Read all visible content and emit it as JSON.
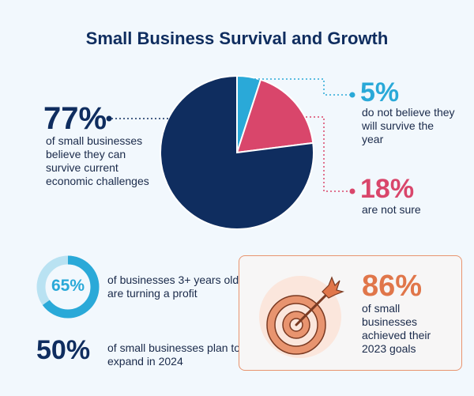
{
  "title": "Small Business Survival and Growth",
  "colors": {
    "navy": "#0f2d5f",
    "blue": "#2aa9d8",
    "pink": "#d9466b",
    "orange": "#e0764a",
    "background": "#f2f8fd"
  },
  "chart_data": {
    "type": "pie",
    "slices": [
      {
        "label": "do not believe they will survive the year",
        "value": 5,
        "display": "5%",
        "color": "#2aa9d8"
      },
      {
        "label": "are not sure",
        "value": 18,
        "display": "18%",
        "color": "#d9466b"
      },
      {
        "label": "of small businesses believe they can survive current economic challenges",
        "value": 77,
        "display": "77%",
        "color": "#0f2d5f"
      }
    ]
  },
  "stats": {
    "profit": {
      "value": "65%",
      "fraction": 0.65,
      "text": "of businesses 3+ years old are turning a profit"
    },
    "expand": {
      "value": "50%",
      "text": "of small businesses plan to expand in 2024"
    },
    "goals": {
      "value": "86%",
      "text": "of small businesses achieved their 2023 goals"
    }
  },
  "icons": {
    "target": "target-arrow-icon"
  }
}
